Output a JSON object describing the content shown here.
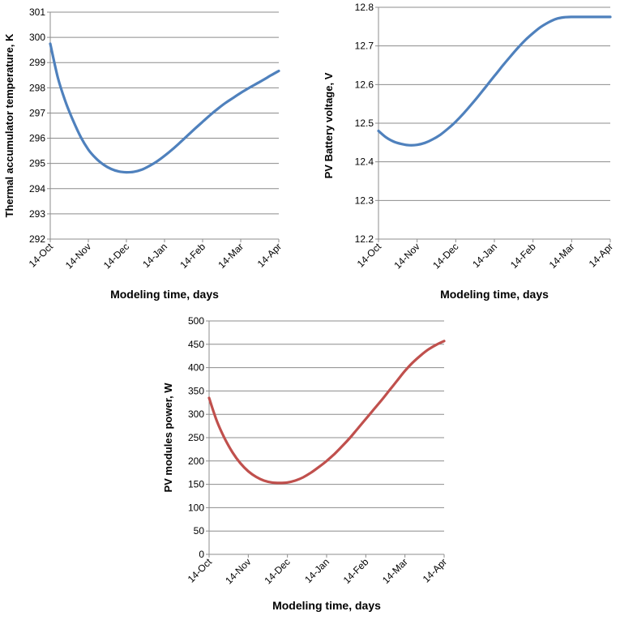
{
  "chart_data": [
    {
      "type": "line",
      "ylabel": "Thermal accumulator temperature, K",
      "xlabel": "Modeling time, days",
      "categories": [
        "14-Oct",
        "14-Nov",
        "14-Dec",
        "14-Jan",
        "14-Feb",
        "14-Mar",
        "14-Apr"
      ],
      "yticks": [
        "292",
        "293",
        "294",
        "295",
        "296",
        "297",
        "298",
        "299",
        "300",
        "301"
      ],
      "ylim": [
        292,
        301
      ],
      "grid": true,
      "color": "#4f81bd",
      "series": [
        {
          "x": [
            0,
            0.2,
            0.4,
            0.6,
            0.8,
            1.0,
            1.2,
            1.4,
            1.6,
            1.8,
            2.0,
            2.2,
            2.4,
            2.6,
            2.8,
            3.0,
            3.2,
            3.4,
            3.6,
            3.8,
            4.0,
            4.2,
            4.4,
            4.6,
            4.8,
            5.0,
            5.2,
            5.4,
            5.6,
            5.8,
            6.0
          ],
          "values": [
            299.75,
            298.4,
            297.45,
            296.7,
            296.05,
            295.55,
            295.2,
            294.95,
            294.78,
            294.68,
            294.65,
            294.67,
            294.75,
            294.9,
            295.08,
            295.3,
            295.55,
            295.82,
            296.1,
            296.38,
            296.65,
            296.92,
            297.17,
            297.4,
            297.6,
            297.8,
            297.98,
            298.15,
            298.32,
            298.5,
            298.67
          ]
        }
      ]
    },
    {
      "type": "line",
      "ylabel": "PV Battery voltage, V",
      "xlabel": "Modeling time, days",
      "categories": [
        "14-Oct",
        "14-Nov",
        "14-Dec",
        "14-Jan",
        "14-Feb",
        "14-Mar",
        "14-Apr"
      ],
      "yticks": [
        "12.2",
        "12.3",
        "12.4",
        "12.5",
        "12.6",
        "12.7",
        "12.8"
      ],
      "ylim": [
        12.2,
        12.8
      ],
      "grid": true,
      "color": "#4f81bd",
      "series": [
        {
          "x": [
            0,
            0.2,
            0.4,
            0.6,
            0.8,
            1.0,
            1.2,
            1.4,
            1.6,
            1.8,
            2.0,
            2.2,
            2.4,
            2.6,
            2.8,
            3.0,
            3.2,
            3.4,
            3.6,
            3.8,
            4.0,
            4.2,
            4.4,
            4.6,
            4.8,
            5.0,
            5.5,
            6.0
          ],
          "values": [
            12.48,
            12.463,
            12.452,
            12.446,
            12.443,
            12.444,
            12.449,
            12.458,
            12.47,
            12.486,
            12.504,
            12.525,
            12.548,
            12.572,
            12.597,
            12.622,
            12.647,
            12.671,
            12.694,
            12.715,
            12.733,
            12.749,
            12.761,
            12.77,
            12.774,
            12.775,
            12.775,
            12.775
          ]
        }
      ]
    },
    {
      "type": "line",
      "ylabel": "PV modules power, W",
      "xlabel": "Modeling time, days",
      "categories": [
        "14-Oct",
        "14-Nov",
        "14-Dec",
        "14-Jan",
        "14-Feb",
        "14-Mar",
        "14-Apr"
      ],
      "yticks": [
        "0",
        "50",
        "100",
        "150",
        "200",
        "250",
        "300",
        "350",
        "400",
        "450",
        "500"
      ],
      "ylim": [
        0,
        500
      ],
      "grid": true,
      "color": "#c0504d",
      "series": [
        {
          "x": [
            0,
            0.2,
            0.4,
            0.6,
            0.8,
            1.0,
            1.2,
            1.4,
            1.6,
            1.8,
            2.0,
            2.2,
            2.4,
            2.6,
            2.8,
            3.0,
            3.2,
            3.4,
            3.6,
            3.8,
            4.0,
            4.2,
            4.4,
            4.6,
            4.8,
            5.0,
            5.2,
            5.4,
            5.6,
            5.8,
            6.0
          ],
          "values": [
            335,
            285,
            248,
            218,
            195,
            178,
            166,
            158,
            154,
            153,
            154,
            158,
            165,
            175,
            187,
            200,
            215,
            232,
            250,
            270,
            290,
            310,
            330,
            351,
            372,
            393,
            411,
            426,
            439,
            449,
            457
          ]
        }
      ]
    }
  ]
}
